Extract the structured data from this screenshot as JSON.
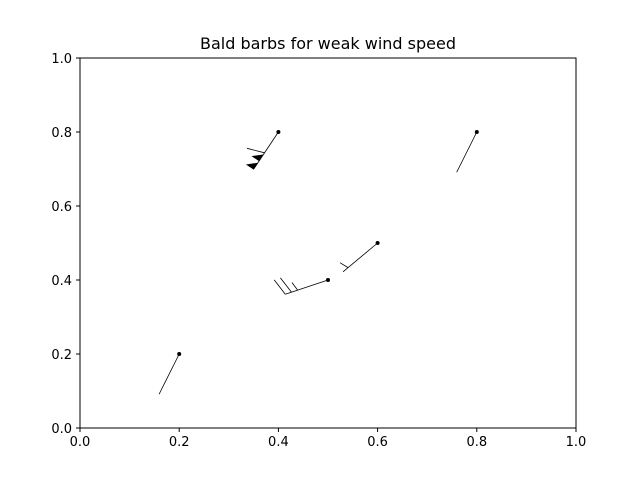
{
  "chart_data": {
    "type": "scatter",
    "title": "Bald barbs for weak wind speed",
    "xlabel": "",
    "ylabel": "",
    "xlim": [
      0,
      1
    ],
    "ylim": [
      0,
      1
    ],
    "xticks": [
      "0.0",
      "0.2",
      "0.4",
      "0.6",
      "0.8",
      "1.0"
    ],
    "yticks": [
      "0.0",
      "0.2",
      "0.4",
      "0.6",
      "0.8",
      "1.0"
    ],
    "grid": false,
    "barbs": [
      {
        "x": 0.2,
        "y": 0.2,
        "u": 10,
        "v": 20,
        "flags": 0,
        "full_barbs": 0,
        "half_barbs": 0
      },
      {
        "x": 0.4,
        "y": 0.8,
        "u": 20,
        "v": 30,
        "flags": 2,
        "full_barbs": 1,
        "half_barbs": 0
      },
      {
        "x": 0.6,
        "y": 0.5,
        "u": 30,
        "v": 25,
        "flags": 0,
        "full_barbs": 0,
        "half_barbs": 1
      },
      {
        "x": 0.5,
        "y": 0.4,
        "u": 30,
        "v": 10,
        "flags": 0,
        "full_barbs": 2,
        "half_barbs": 1
      },
      {
        "x": 0.8,
        "y": 0.8,
        "u": 10,
        "v": 20,
        "flags": 0,
        "full_barbs": 0,
        "half_barbs": 0
      }
    ]
  }
}
